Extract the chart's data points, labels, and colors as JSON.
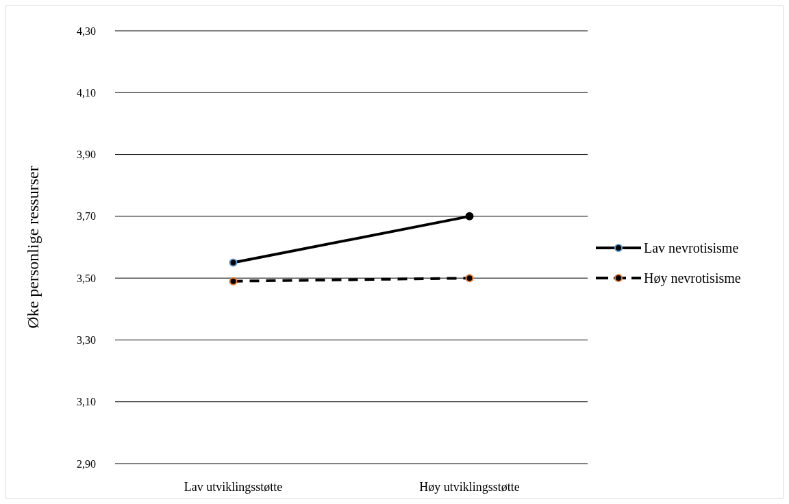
{
  "chart_data": {
    "type": "line",
    "ylabel": "Øke personlige ressurser",
    "categories": [
      "Lav utviklingsstøtte",
      "Høy utviklingsstøtte"
    ],
    "series": [
      {
        "name": "Lav nevrotisisme",
        "color": "#000000",
        "colors": [
          "#5b9bd5",
          "#000000"
        ],
        "values": [
          3.55,
          3.7
        ],
        "line_style": "solid"
      },
      {
        "name": "Høy nevrotisisme",
        "color": "#000000",
        "colors": [
          "#ed7d31",
          "#ed7d31"
        ],
        "values": [
          3.49,
          3.5
        ],
        "line_style": "dashed"
      }
    ],
    "ylim": [
      2.9,
      4.3
    ],
    "yticks": [
      {
        "value": 2.9,
        "label": "2,90"
      },
      {
        "value": 3.1,
        "label": "3,10"
      },
      {
        "value": 3.3,
        "label": "3,30"
      },
      {
        "value": 3.5,
        "label": "3,50"
      },
      {
        "value": 3.7,
        "label": "3,70"
      },
      {
        "value": 3.9,
        "label": "3,90"
      },
      {
        "value": 4.1,
        "label": "4,10"
      },
      {
        "value": 4.3,
        "label": "4,30"
      }
    ],
    "grid": "y",
    "legend": "right",
    "marker": "circle"
  }
}
